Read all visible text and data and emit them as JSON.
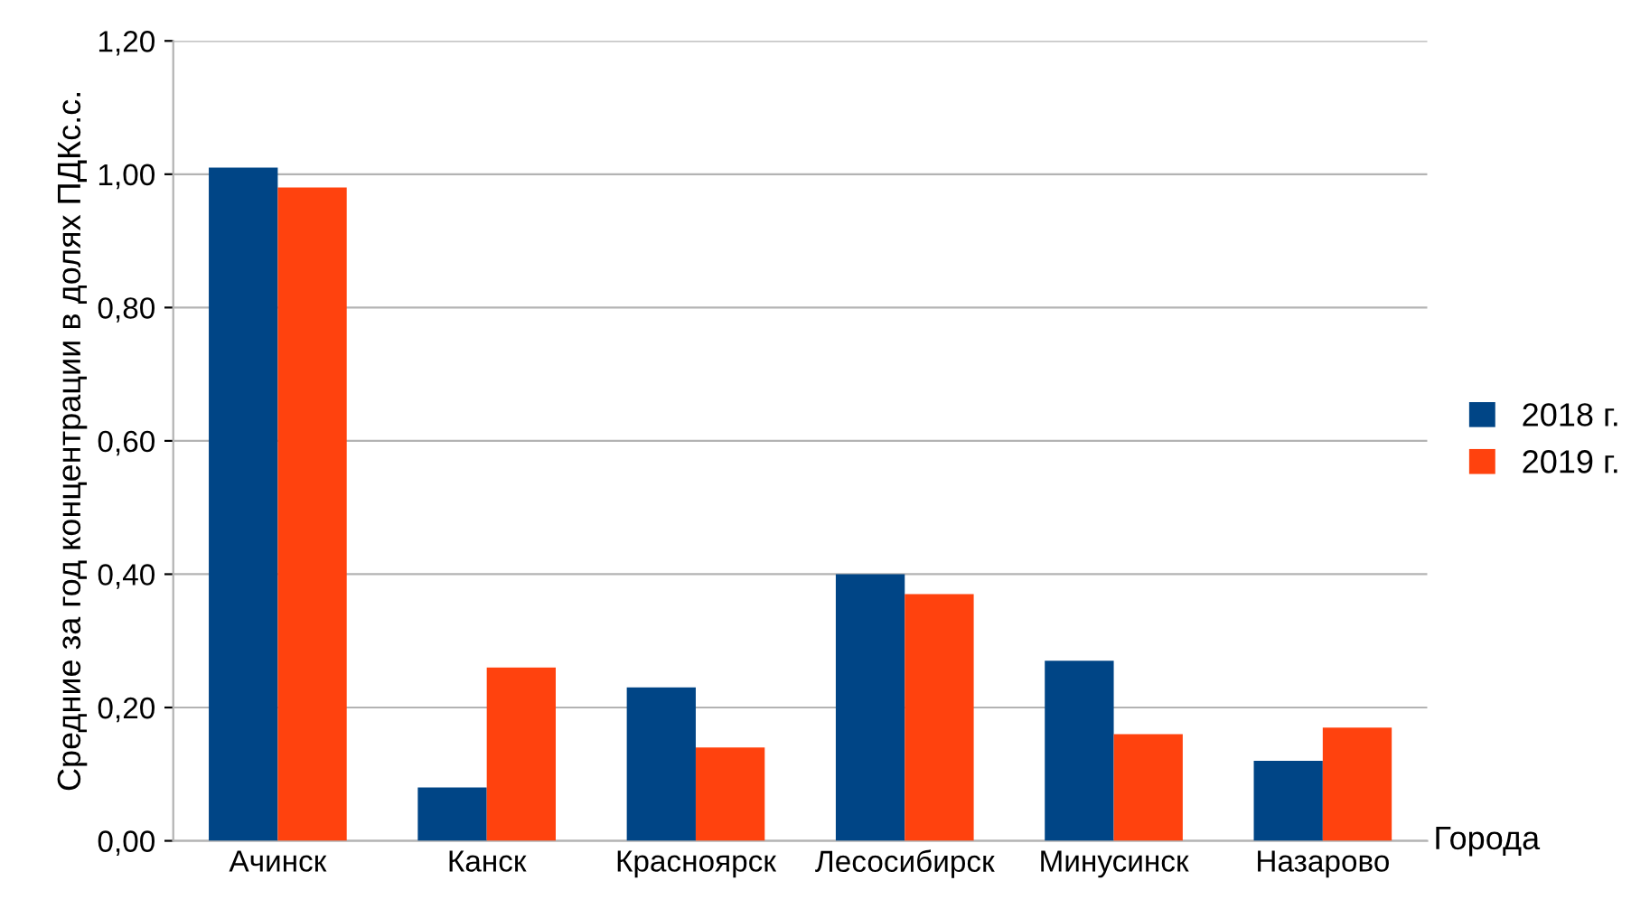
{
  "chart_data": {
    "type": "bar",
    "xlabel": "Города",
    "ylabel": "Средние за год концентрации в долях ПДКс.с.",
    "categories": [
      "Ачинск",
      "Канск",
      "Красноярск",
      "Лесосибирск",
      "Минусинск",
      "Назарово"
    ],
    "series": [
      {
        "name": "2018 г.",
        "color": "#004586",
        "values": [
          1.01,
          0.08,
          0.23,
          0.4,
          0.27,
          0.12
        ]
      },
      {
        "name": "2019 г.",
        "color": "#ff420e",
        "values": [
          0.98,
          0.26,
          0.14,
          0.37,
          0.16,
          0.17
        ]
      }
    ],
    "ylim": [
      0,
      1.2
    ],
    "yticks": [
      {
        "value": 0,
        "label": "0,00"
      },
      {
        "value": 0.2,
        "label": "0,20"
      },
      {
        "value": 0.4,
        "label": "0,40"
      },
      {
        "value": 0.6,
        "label": "0,60"
      },
      {
        "value": 0.8,
        "label": "0,80"
      },
      {
        "value": 1.0,
        "label": "1,00"
      },
      {
        "value": 1.2,
        "label": "1,20"
      }
    ],
    "grid": "y",
    "legend": "right"
  }
}
